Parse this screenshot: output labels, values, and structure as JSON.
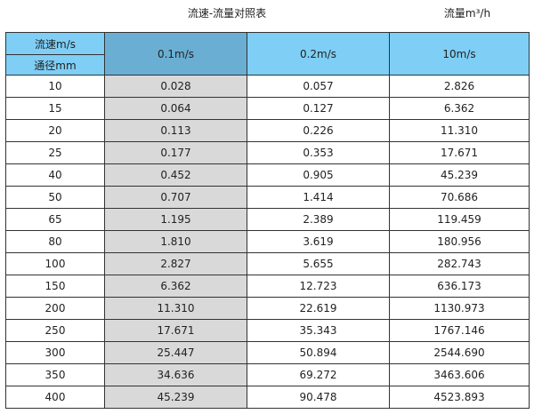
{
  "title": "流速-流量对照表",
  "unit": "流量m³/h",
  "header": {
    "speed_label": "流速m/s",
    "diameter_label": "通径mm",
    "columns": [
      "0.1m/s",
      "0.2m/s",
      "10m/s"
    ]
  },
  "colors": {
    "header": "#7fcef5",
    "header_highlight": "#6aafd3",
    "highlight_column": "#d9d9d9"
  },
  "rows": [
    [
      "10",
      "0.028",
      "0.057",
      "2.826"
    ],
    [
      "15",
      "0.064",
      "0.127",
      "6.362"
    ],
    [
      "20",
      "0.113",
      "0.226",
      "11.310"
    ],
    [
      "25",
      "0.177",
      "0.353",
      "17.671"
    ],
    [
      "40",
      "0.452",
      "0.905",
      "45.239"
    ],
    [
      "50",
      "0.707",
      "1.414",
      "70.686"
    ],
    [
      "65",
      "1.195",
      "2.389",
      "119.459"
    ],
    [
      "80",
      "1.810",
      "3.619",
      "180.956"
    ],
    [
      "100",
      "2.827",
      "5.655",
      "282.743"
    ],
    [
      "150",
      "6.362",
      "12.723",
      "636.173"
    ],
    [
      "200",
      "11.310",
      "22.619",
      "1130.973"
    ],
    [
      "250",
      "17.671",
      "35.343",
      "1767.146"
    ],
    [
      "300",
      "25.447",
      "50.894",
      "2544.690"
    ],
    [
      "350",
      "34.636",
      "69.272",
      "3463.606"
    ],
    [
      "400",
      "45.239",
      "90.478",
      "4523.893"
    ]
  ]
}
